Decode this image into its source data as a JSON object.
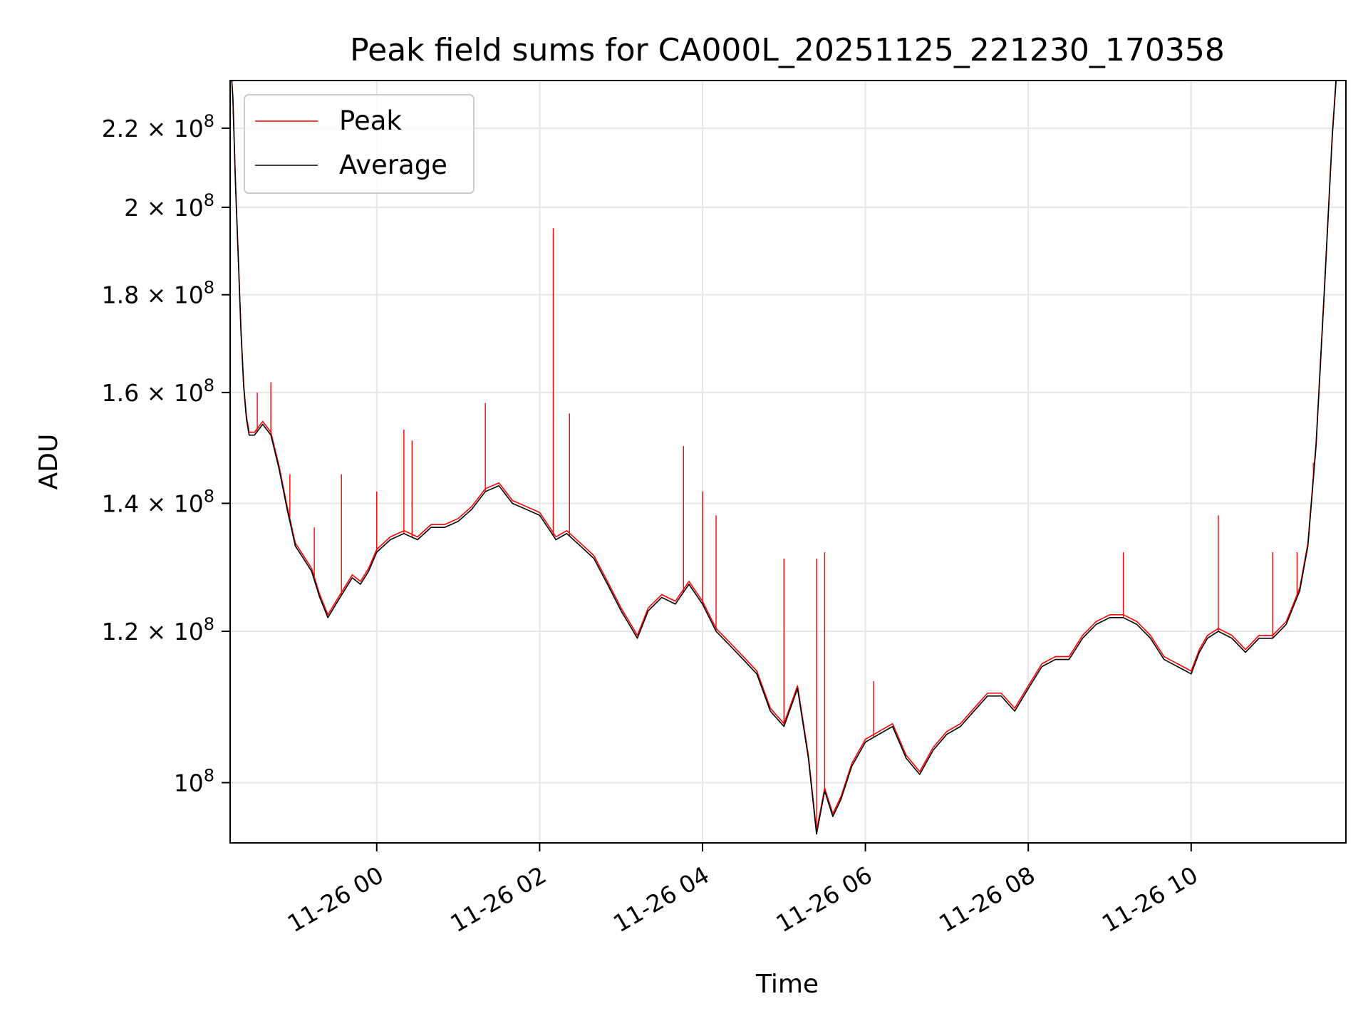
{
  "chart_data": {
    "type": "line",
    "title": "Peak field sums for CA000L_20251125_221230_170358",
    "xlabel": "Time",
    "ylabel": "ADU",
    "y_scale": "log",
    "ylim": [
      93000000,
      233000000
    ],
    "xlim": [
      "2025-11-25 22:12",
      "2025-11-26 11:54"
    ],
    "grid": true,
    "legend": "upper-left",
    "x_ticks": [
      {
        "value": "2025-11-26 00:00",
        "label": "11-26 00"
      },
      {
        "value": "2025-11-26 02:00",
        "label": "11-26 02"
      },
      {
        "value": "2025-11-26 04:00",
        "label": "11-26 04"
      },
      {
        "value": "2025-11-26 06:00",
        "label": "11-26 06"
      },
      {
        "value": "2025-11-26 08:00",
        "label": "11-26 08"
      },
      {
        "value": "2025-11-26 10:00",
        "label": "11-26 10"
      }
    ],
    "y_ticks": [
      {
        "value": 100000000,
        "mantissa": "",
        "exp": "8"
      },
      {
        "value": 120000000,
        "mantissa": "1.2",
        "exp": "8"
      },
      {
        "value": 140000000,
        "mantissa": "1.4",
        "exp": "8"
      },
      {
        "value": 160000000,
        "mantissa": "1.6",
        "exp": "8"
      },
      {
        "value": 180000000,
        "mantissa": "1.8",
        "exp": "8"
      },
      {
        "value": 200000000,
        "mantissa": "2",
        "exp": "8"
      },
      {
        "value": 220000000,
        "mantissa": "2.2",
        "exp": "8"
      }
    ],
    "series": [
      {
        "name": "Average",
        "color": "#000000",
        "points": [
          [
            "2025-11-25 22:12",
            240000000
          ],
          [
            "2025-11-25 22:14",
            228000000
          ],
          [
            "2025-11-25 22:16",
            205000000
          ],
          [
            "2025-11-25 22:18",
            188000000
          ],
          [
            "2025-11-25 22:20",
            172000000
          ],
          [
            "2025-11-25 22:22",
            161000000
          ],
          [
            "2025-11-25 22:24",
            155000000
          ],
          [
            "2025-11-25 22:26",
            152000000
          ],
          [
            "2025-11-25 22:30",
            152000000
          ],
          [
            "2025-11-25 22:36",
            154000000
          ],
          [
            "2025-11-25 22:42",
            152000000
          ],
          [
            "2025-11-25 22:48",
            146000000
          ],
          [
            "2025-11-25 22:54",
            139000000
          ],
          [
            "2025-11-25 23:00",
            133000000
          ],
          [
            "2025-11-25 23:06",
            131000000
          ],
          [
            "2025-11-25 23:12",
            129000000
          ],
          [
            "2025-11-25 23:18",
            125000000
          ],
          [
            "2025-11-25 23:24",
            122000000
          ],
          [
            "2025-11-25 23:30",
            124000000
          ],
          [
            "2025-11-25 23:36",
            126000000
          ],
          [
            "2025-11-25 23:42",
            128000000
          ],
          [
            "2025-11-25 23:48",
            127000000
          ],
          [
            "2025-11-25 23:54",
            129000000
          ],
          [
            "2025-11-26 00:00",
            132000000
          ],
          [
            "2025-11-26 00:10",
            134000000
          ],
          [
            "2025-11-26 00:20",
            135000000
          ],
          [
            "2025-11-26 00:30",
            134000000
          ],
          [
            "2025-11-26 00:40",
            136000000
          ],
          [
            "2025-11-26 00:50",
            136000000
          ],
          [
            "2025-11-26 01:00",
            137000000
          ],
          [
            "2025-11-26 01:10",
            139000000
          ],
          [
            "2025-11-26 01:20",
            142000000
          ],
          [
            "2025-11-26 01:30",
            143000000
          ],
          [
            "2025-11-26 01:40",
            140000000
          ],
          [
            "2025-11-26 01:50",
            139000000
          ],
          [
            "2025-11-26 02:00",
            138000000
          ],
          [
            "2025-11-26 02:06",
            136000000
          ],
          [
            "2025-11-26 02:12",
            134000000
          ],
          [
            "2025-11-26 02:20",
            135000000
          ],
          [
            "2025-11-26 02:30",
            133000000
          ],
          [
            "2025-11-26 02:40",
            131000000
          ],
          [
            "2025-11-26 02:50",
            127000000
          ],
          [
            "2025-11-26 03:00",
            123000000
          ],
          [
            "2025-11-26 03:06",
            121000000
          ],
          [
            "2025-11-26 03:12",
            119000000
          ],
          [
            "2025-11-26 03:20",
            123000000
          ],
          [
            "2025-11-26 03:30",
            125000000
          ],
          [
            "2025-11-26 03:40",
            124000000
          ],
          [
            "2025-11-26 03:50",
            127000000
          ],
          [
            "2025-11-26 04:00",
            124000000
          ],
          [
            "2025-11-26 04:10",
            120000000
          ],
          [
            "2025-11-26 04:20",
            118000000
          ],
          [
            "2025-11-26 04:30",
            116000000
          ],
          [
            "2025-11-26 04:40",
            114000000
          ],
          [
            "2025-11-26 04:50",
            109000000
          ],
          [
            "2025-11-26 05:00",
            107000000
          ],
          [
            "2025-11-26 05:10",
            112000000
          ],
          [
            "2025-11-26 05:18",
            103000000
          ],
          [
            "2025-11-26 05:24",
            94000000
          ],
          [
            "2025-11-26 05:30",
            99000000
          ],
          [
            "2025-11-26 05:36",
            96000000
          ],
          [
            "2025-11-26 05:42",
            98000000
          ],
          [
            "2025-11-26 05:50",
            102000000
          ],
          [
            "2025-11-26 06:00",
            105000000
          ],
          [
            "2025-11-26 06:10",
            106000000
          ],
          [
            "2025-11-26 06:20",
            107000000
          ],
          [
            "2025-11-26 06:30",
            103000000
          ],
          [
            "2025-11-26 06:40",
            101000000
          ],
          [
            "2025-11-26 06:50",
            104000000
          ],
          [
            "2025-11-26 07:00",
            106000000
          ],
          [
            "2025-11-26 07:10",
            107000000
          ],
          [
            "2025-11-26 07:20",
            109000000
          ],
          [
            "2025-11-26 07:30",
            111000000
          ],
          [
            "2025-11-26 07:40",
            111000000
          ],
          [
            "2025-11-26 07:50",
            109000000
          ],
          [
            "2025-11-26 08:00",
            112000000
          ],
          [
            "2025-11-26 08:10",
            115000000
          ],
          [
            "2025-11-26 08:20",
            116000000
          ],
          [
            "2025-11-26 08:30",
            116000000
          ],
          [
            "2025-11-26 08:40",
            119000000
          ],
          [
            "2025-11-26 08:50",
            121000000
          ],
          [
            "2025-11-26 09:00",
            122000000
          ],
          [
            "2025-11-26 09:10",
            122000000
          ],
          [
            "2025-11-26 09:20",
            121000000
          ],
          [
            "2025-11-26 09:30",
            119000000
          ],
          [
            "2025-11-26 09:40",
            116000000
          ],
          [
            "2025-11-26 09:50",
            115000000
          ],
          [
            "2025-11-26 10:00",
            114000000
          ],
          [
            "2025-11-26 10:06",
            117000000
          ],
          [
            "2025-11-26 10:12",
            119000000
          ],
          [
            "2025-11-26 10:20",
            120000000
          ],
          [
            "2025-11-26 10:30",
            119000000
          ],
          [
            "2025-11-26 10:40",
            117000000
          ],
          [
            "2025-11-26 10:50",
            119000000
          ],
          [
            "2025-11-26 11:00",
            119000000
          ],
          [
            "2025-11-26 11:10",
            121000000
          ],
          [
            "2025-11-26 11:20",
            126000000
          ],
          [
            "2025-11-26 11:26",
            133000000
          ],
          [
            "2025-11-26 11:32",
            150000000
          ],
          [
            "2025-11-26 11:38",
            180000000
          ],
          [
            "2025-11-26 11:44",
            218000000
          ],
          [
            "2025-11-26 11:48",
            240000000
          ]
        ]
      },
      {
        "name": "Peak",
        "color": "#ff0000",
        "spikes": [
          [
            "2025-11-25 22:32",
            160000000
          ],
          [
            "2025-11-25 22:42",
            162000000
          ],
          [
            "2025-11-25 22:56",
            145000000
          ],
          [
            "2025-11-25 23:14",
            136000000
          ],
          [
            "2025-11-25 23:34",
            145000000
          ],
          [
            "2025-11-26 00:00",
            142000000
          ],
          [
            "2025-11-26 00:20",
            153000000
          ],
          [
            "2025-11-26 00:26",
            151000000
          ],
          [
            "2025-11-26 01:20",
            158000000
          ],
          [
            "2025-11-26 02:10",
            195000000
          ],
          [
            "2025-11-26 02:22",
            156000000
          ],
          [
            "2025-11-26 03:46",
            150000000
          ],
          [
            "2025-11-26 04:00",
            142000000
          ],
          [
            "2025-11-26 04:10",
            138000000
          ],
          [
            "2025-11-26 05:00",
            131000000
          ],
          [
            "2025-11-26 05:24",
            131000000
          ],
          [
            "2025-11-26 05:30",
            132000000
          ],
          [
            "2025-11-26 06:06",
            113000000
          ],
          [
            "2025-11-26 09:10",
            132000000
          ],
          [
            "2025-11-26 10:20",
            138000000
          ],
          [
            "2025-11-26 11:00",
            132000000
          ],
          [
            "2025-11-26 11:18",
            132000000
          ],
          [
            "2025-11-26 11:30",
            147000000
          ]
        ]
      }
    ]
  }
}
